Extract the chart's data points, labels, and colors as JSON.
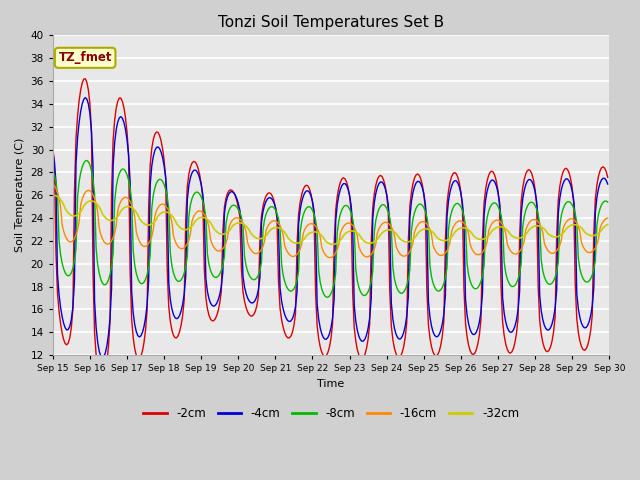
{
  "title": "Tonzi Soil Temperatures Set B",
  "xlabel": "Time",
  "ylabel": "Soil Temperature (C)",
  "ylim": [
    12,
    40
  ],
  "yticks": [
    12,
    14,
    16,
    18,
    20,
    22,
    24,
    26,
    28,
    30,
    32,
    34,
    36,
    38,
    40
  ],
  "series_colors": {
    "-2cm": "#dd0000",
    "-4cm": "#0000dd",
    "-8cm": "#00bb00",
    "-16cm": "#ff8800",
    "-32cm": "#cccc00"
  },
  "x_tick_labels": [
    "Sep 15",
    "Sep 16",
    "Sep 17",
    "Sep 18",
    "Sep 19",
    "Sep 20",
    "Sep 21",
    "Sep 22",
    "Sep 23",
    "Sep 24",
    "Sep 25",
    "Sep 26",
    "Sep 27",
    "Sep 28",
    "Sep 29",
    "Sep 30"
  ],
  "n_days": 15,
  "pts_per_day": 24,
  "annotation_text": "TZ_fmet",
  "annotation_color": "#8b0000",
  "annotation_bg": "#ffffcc",
  "annotation_edge": "#aaaa00",
  "fig_bg": "#d0d0d0",
  "ax_bg": "#e8e8e8",
  "grid_color": "#ffffff"
}
